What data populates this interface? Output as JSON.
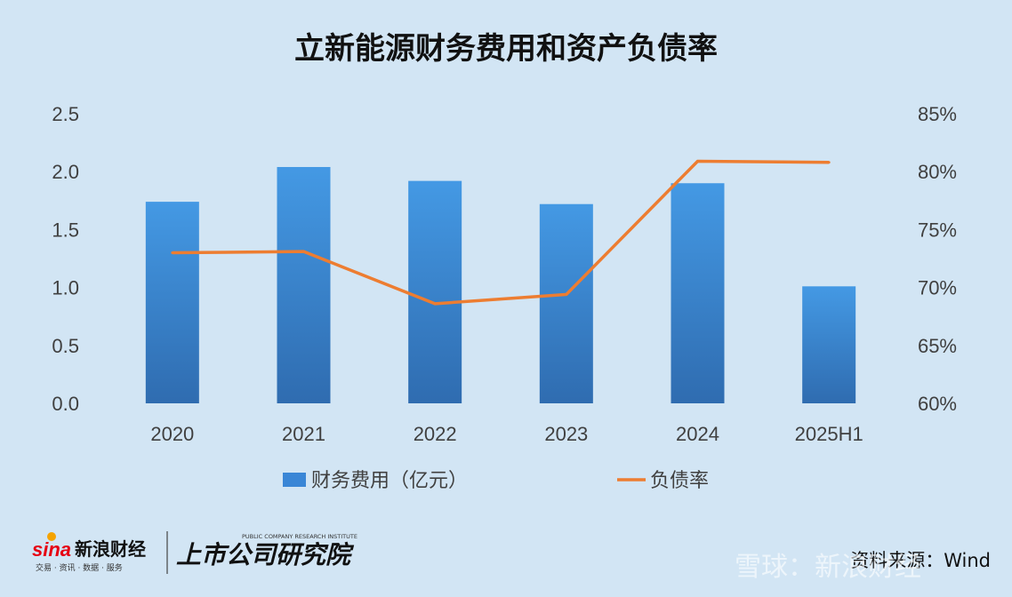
{
  "chart_data": {
    "type": "bar+line",
    "title": "立新能源财务费用和资产负债率",
    "categories": [
      "2020",
      "2021",
      "2022",
      "2023",
      "2024",
      "2025H1"
    ],
    "series": [
      {
        "name": "财务费用（亿元）",
        "type": "bar",
        "axis": "left",
        "values": [
          1.74,
          2.04,
          1.92,
          1.72,
          1.9,
          1.01
        ],
        "color": "#3a86d6"
      },
      {
        "name": "负债率",
        "type": "line",
        "axis": "right",
        "values": [
          73.0,
          73.1,
          68.6,
          69.4,
          80.9,
          80.8
        ],
        "color": "#ed7d31"
      }
    ],
    "y_left": {
      "ylim": [
        0,
        2.5
      ],
      "ticks": [
        "0.0",
        "0.5",
        "1.0",
        "1.5",
        "2.0",
        "2.5"
      ],
      "tick_values": [
        0,
        0.5,
        1.0,
        1.5,
        2.0,
        2.5
      ]
    },
    "y_right": {
      "ylim": [
        60,
        85
      ],
      "ticks": [
        "60%",
        "65%",
        "70%",
        "75%",
        "80%",
        "85%"
      ],
      "tick_values": [
        60,
        65,
        70,
        75,
        80,
        85
      ]
    },
    "legend_position": "bottom",
    "grid": false
  },
  "footer": {
    "brand_sina": "新浪财经",
    "brand_sina_sub": "交易 · 资讯 · 数据 · 服务",
    "brand_institute": "上市公司研究院",
    "brand_institute_en": "PUBLIC COMPANY RESEARCH INSTITUTE",
    "source": "资料来源：Wind",
    "watermark": "雪球：新浪财经"
  }
}
